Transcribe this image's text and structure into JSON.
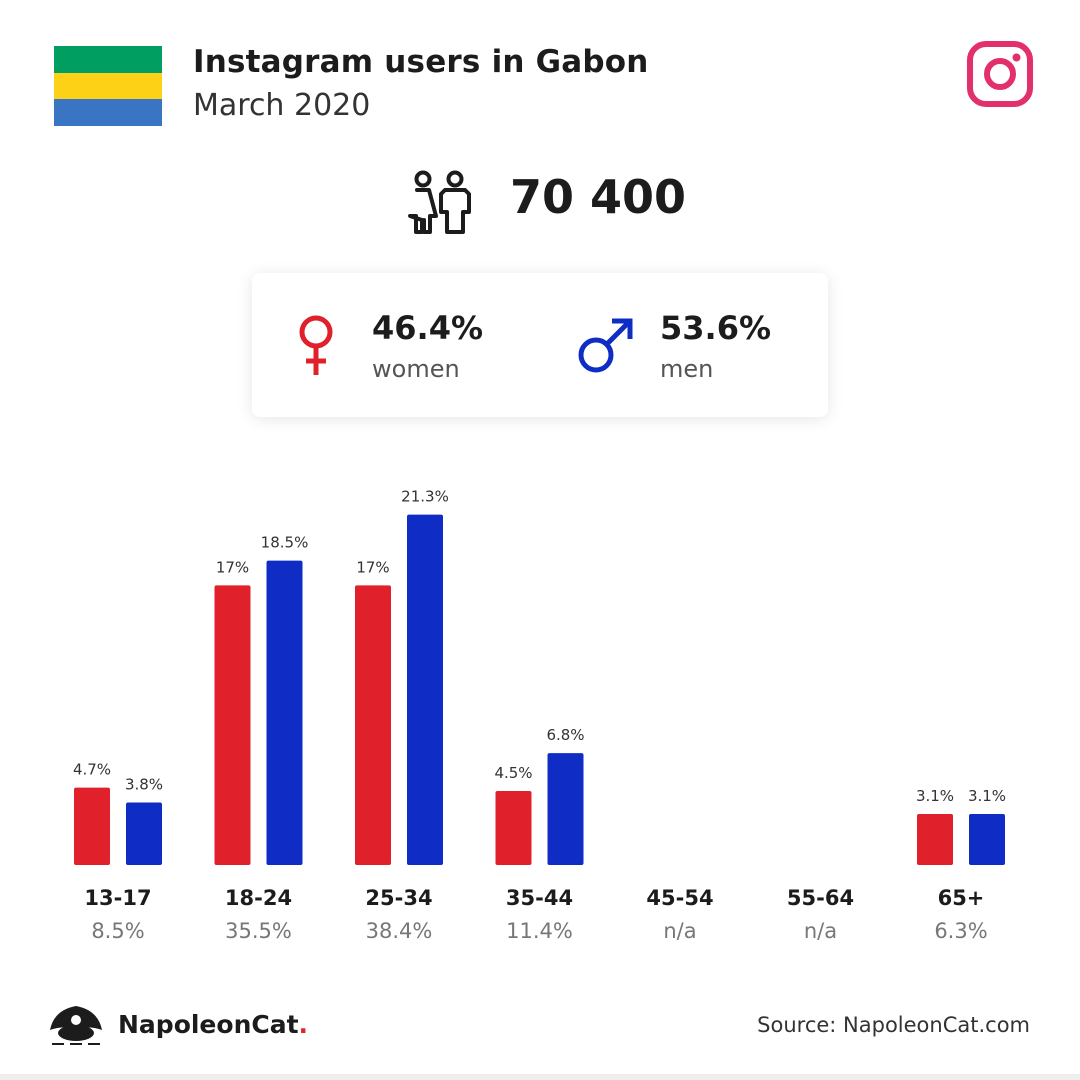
{
  "header": {
    "title": "Instagram users in Gabon",
    "subtitle": "March 2020",
    "flag_colors": [
      "#009e60",
      "#fcd116",
      "#3a75c4"
    ],
    "social_icon": "instagram-icon",
    "social_color": "#e1306c"
  },
  "total": {
    "icon": "people-icon",
    "value": "70 400"
  },
  "gender": {
    "women": {
      "pct": "46.4%",
      "label": "women",
      "icon": "female-icon",
      "color": "#e0202a"
    },
    "men": {
      "pct": "53.6%",
      "label": "men",
      "icon": "male-icon",
      "color": "#0f2cc4"
    }
  },
  "chart_data": {
    "type": "bar",
    "categories": [
      "13-17",
      "18-24",
      "25-34",
      "35-44",
      "45-54",
      "55-64",
      "65+"
    ],
    "category_totals": [
      "8.5%",
      "35.5%",
      "38.4%",
      "11.4%",
      "n/a",
      "n/a",
      "6.3%"
    ],
    "series": [
      {
        "color": "#e0202a",
        "values": [
          4.7,
          17,
          17,
          4.5,
          null,
          null,
          3.1
        ],
        "labels": [
          "4.7%",
          "17%",
          "17%",
          "4.5%",
          "",
          "",
          "3.1%"
        ]
      },
      {
        "color": "#0f2cc4",
        "values": [
          3.8,
          18.5,
          21.3,
          6.8,
          null,
          null,
          3.1
        ],
        "labels": [
          "3.8%",
          "18.5%",
          "21.3%",
          "6.8%",
          "",
          "",
          "3.1%"
        ]
      }
    ]
  },
  "footer": {
    "brand": "NapoleonCat",
    "brand_dot": ".",
    "source": "Source: NapoleonCat.com"
  }
}
